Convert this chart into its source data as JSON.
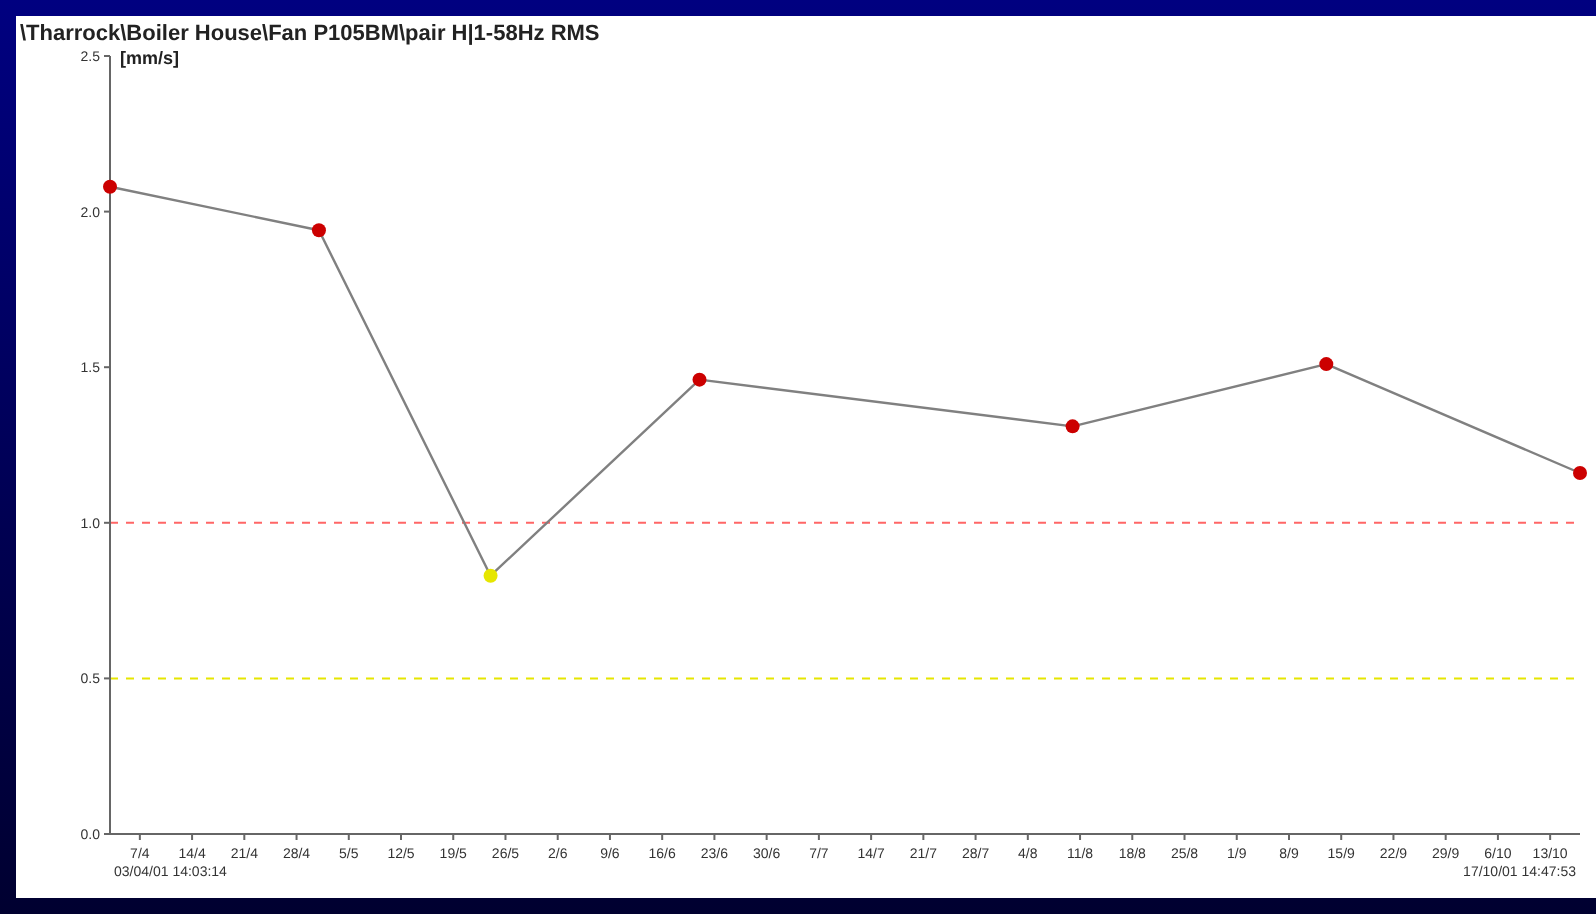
{
  "chart_data": {
    "type": "line",
    "title": "\\Tharrock\\Boiler House\\Fan P105BM\\pair H|1-58Hz RMS",
    "ylabel": "[mm/s]",
    "x": [
      "--04-03",
      "--05-01",
      "--05-24",
      "--06-21",
      "--08-10",
      "--09-13",
      "--10-17"
    ],
    "series": [
      {
        "color": "#808080",
        "colors": [
          "#cc0000",
          "#cc0000",
          "#e6e600",
          "#cc0000",
          "#cc0000",
          "#cc0000",
          "#cc0000"
        ],
        "values": [
          2.08,
          1.94,
          0.83,
          1.46,
          1.31,
          1.51,
          1.16
        ]
      }
    ],
    "xlim": [
      "--04-03",
      "--10-17"
    ],
    "xticks": [
      {
        "value": "--04-07",
        "label": "7/4"
      },
      {
        "value": "--04-14",
        "label": "14/4"
      },
      {
        "value": "--04-21",
        "label": "21/4"
      },
      {
        "value": "--04-28",
        "label": "28/4"
      },
      {
        "value": "--05-05",
        "label": "5/5"
      },
      {
        "value": "--05-12",
        "label": "12/5"
      },
      {
        "value": "--05-19",
        "label": "19/5"
      },
      {
        "value": "--05-26",
        "label": "26/5"
      },
      {
        "value": "--06-02",
        "label": "2/6"
      },
      {
        "value": "--06-09",
        "label": "9/6"
      },
      {
        "value": "--06-16",
        "label": "16/6"
      },
      {
        "value": "--06-23",
        "label": "23/6"
      },
      {
        "value": "--06-30",
        "label": "30/6"
      },
      {
        "value": "--07-07",
        "label": "7/7"
      },
      {
        "value": "--07-14",
        "label": "14/7"
      },
      {
        "value": "--07-21",
        "label": "21/7"
      },
      {
        "value": "--07-28",
        "label": "28/7"
      },
      {
        "value": "--08-04",
        "label": "4/8"
      },
      {
        "value": "--08-11",
        "label": "11/8"
      },
      {
        "value": "--08-18",
        "label": "18/8"
      },
      {
        "value": "--08-25",
        "label": "25/8"
      },
      {
        "value": "--09-01",
        "label": "1/9"
      },
      {
        "value": "--09-08",
        "label": "8/9"
      },
      {
        "value": "--09-15",
        "label": "15/9"
      },
      {
        "value": "--09-22",
        "label": "22/9"
      },
      {
        "value": "--09-29",
        "label": "29/9"
      },
      {
        "value": "--10-06",
        "label": "6/10"
      },
      {
        "value": "--10-13",
        "label": "13/10"
      }
    ],
    "ylim": [
      0,
      2.5
    ],
    "yticks": [
      {
        "value": 0,
        "label": "0.0"
      },
      {
        "value": 0.5,
        "label": "0.5"
      },
      {
        "value": 1,
        "label": "1.0"
      },
      {
        "value": 1.5,
        "label": "1.5"
      },
      {
        "value": 2,
        "label": "2.0"
      },
      {
        "value": 2.5,
        "label": "2.5"
      }
    ],
    "ref_lines": [
      {
        "axis": "y",
        "value": 1,
        "color": "#ff6666",
        "line_style": "dashed"
      },
      {
        "axis": "y",
        "value": 0.5,
        "color": "#e6e600",
        "line_style": "dashed"
      }
    ],
    "annotations": [
      "03/04/01 14:03:14",
      "17/10/01 14:47:53"
    ],
    "marker": "circle",
    "line_style": "solid",
    "grid": false
  }
}
